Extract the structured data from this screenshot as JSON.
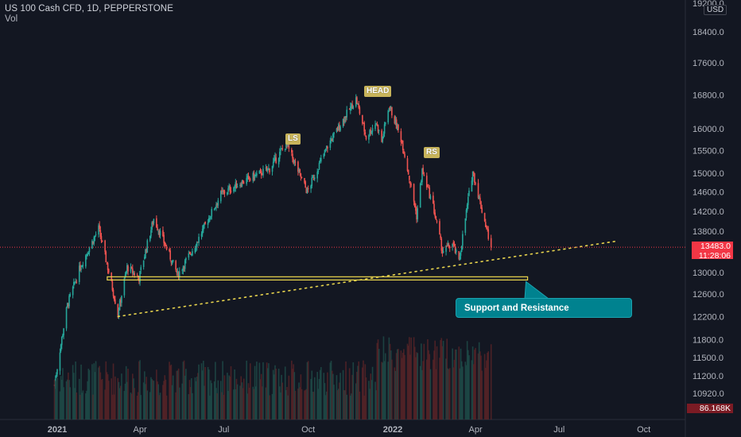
{
  "header": {
    "title": "US 100 Cash CFD, 1D, PEPPERSTONE",
    "volume_label": "Vol"
  },
  "currency": "USD",
  "chart_data": {
    "type": "candlestick",
    "price_axis_ticks": [
      "18400.0",
      "17600.0",
      "16800.0",
      "16000.0",
      "15500.0",
      "15000.0",
      "14600.0",
      "14200.0",
      "13800.0",
      "13000.0",
      "12600.0",
      "12200.0",
      "11800.0",
      "11500.0",
      "11200.0",
      "10920.0"
    ],
    "top_partial_tick": "19200.0",
    "price_axis_scale": "log",
    "time_axis_ticks": [
      "2021",
      "Apr",
      "Jul",
      "Oct",
      "2022",
      "Apr",
      "Jul",
      "Oct"
    ],
    "last_price": "13483.0",
    "countdown": "11:28:06",
    "last_volume": "86.168K",
    "pattern_labels": [
      "LS",
      "HEAD",
      "RS"
    ],
    "annotation": "Support and Resistance",
    "colors": {
      "up": "#26a69a",
      "down": "#ef5350",
      "trendline": "#e8d44d",
      "support_box": "#e8d44d",
      "callout": "#00828f",
      "background": "#131722"
    },
    "anchors": [
      {
        "date": "2020-12-29",
        "price": 11050
      },
      {
        "date": "2021-01-12",
        "price": 12400
      },
      {
        "date": "2021-01-26",
        "price": 13100
      },
      {
        "date": "2021-02-15",
        "price": 13850
      },
      {
        "date": "2021-03-08",
        "price": 12250
      },
      {
        "date": "2021-03-18",
        "price": 13100
      },
      {
        "date": "2021-03-31",
        "price": 12900
      },
      {
        "date": "2021-04-16",
        "price": 14050
      },
      {
        "date": "2021-05-12",
        "price": 12950
      },
      {
        "date": "2021-06-01",
        "price": 13550
      },
      {
        "date": "2021-06-28",
        "price": 14550
      },
      {
        "date": "2021-07-20",
        "price": 14800
      },
      {
        "date": "2021-08-20",
        "price": 15100
      },
      {
        "date": "2021-09-07",
        "price": 15650
      },
      {
        "date": "2021-09-30",
        "price": 14600
      },
      {
        "date": "2021-10-22",
        "price": 15600
      },
      {
        "date": "2021-11-22",
        "price": 16700
      },
      {
        "date": "2021-12-03",
        "price": 15800
      },
      {
        "date": "2021-12-14",
        "price": 16150
      },
      {
        "date": "2021-12-20",
        "price": 15700
      },
      {
        "date": "2021-12-28",
        "price": 16550
      },
      {
        "date": "2022-01-11",
        "price": 15700
      },
      {
        "date": "2022-01-27",
        "price": 14100
      },
      {
        "date": "2022-02-02",
        "price": 15050
      },
      {
        "date": "2022-02-14",
        "price": 14300
      },
      {
        "date": "2022-02-24",
        "price": 13400
      },
      {
        "date": "2022-03-07",
        "price": 13550
      },
      {
        "date": "2022-03-14",
        "price": 13200
      },
      {
        "date": "2022-03-29",
        "price": 15050
      },
      {
        "date": "2022-04-07",
        "price": 14300
      },
      {
        "date": "2022-04-18",
        "price": 13483
      }
    ],
    "trendline": {
      "start": {
        "date": "2021-03-08",
        "price": 12200
      },
      "end": {
        "date": "2022-09-01",
        "price": 13600
      }
    },
    "support_zone": {
      "from": "2021-03-18",
      "to": "2022-04-30",
      "price_top": 12920,
      "price_bottom": 12860
    }
  }
}
